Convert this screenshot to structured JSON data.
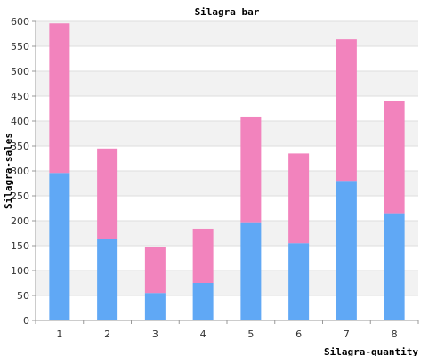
{
  "chart_data": {
    "type": "bar",
    "stacked": true,
    "title": "Silagra bar",
    "xlabel": "Silagra-quantity",
    "ylabel": "Silagra-sales",
    "categories": [
      "1",
      "2",
      "3",
      "4",
      "5",
      "6",
      "7",
      "8"
    ],
    "ylim": [
      0,
      600
    ],
    "yticks": [
      0,
      50,
      100,
      150,
      200,
      250,
      300,
      350,
      400,
      450,
      500,
      550,
      600
    ],
    "grid": true,
    "series": [
      {
        "values": [
          296,
          163,
          55,
          75,
          197,
          155,
          280,
          215
        ],
        "color": "#60a8f5"
      },
      {
        "values": [
          300,
          182,
          93,
          109,
          212,
          180,
          284,
          226
        ],
        "color": "#f283bd"
      }
    ],
    "band_color": "#f2f2f2",
    "grid_color": "#dddddd"
  }
}
